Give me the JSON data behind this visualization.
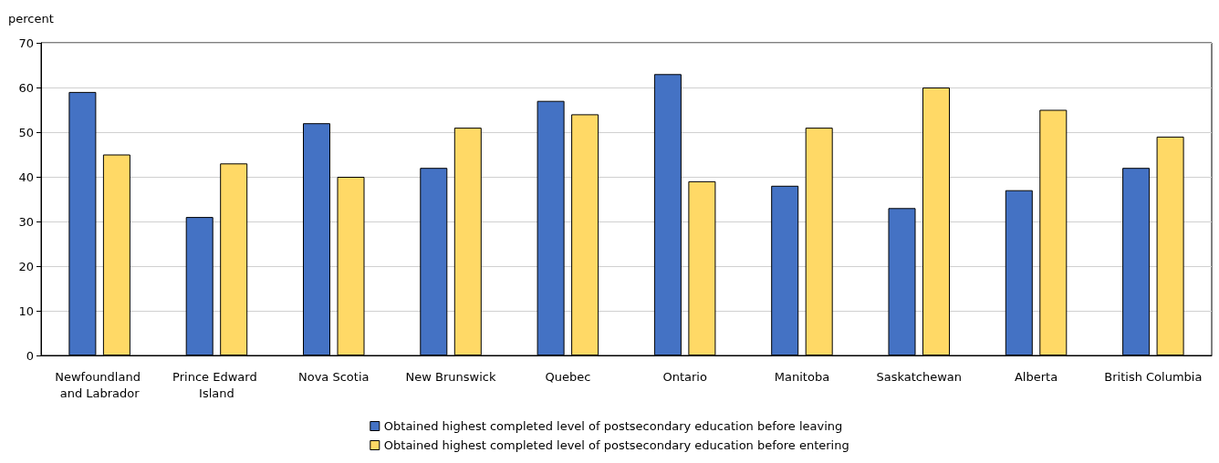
{
  "chart_data": {
    "type": "bar",
    "ylabel": "percent",
    "categories": [
      "Newfoundland and Labrador",
      "Prince Edward Island",
      "Nova Scotia",
      "New Brunswick",
      "Quebec",
      "Ontario",
      "Manitoba",
      "Saskatchewan",
      "Alberta",
      "British Columbia"
    ],
    "series": [
      {
        "name": "Obtained highest completed level of postsecondary education before leaving",
        "color": "#4472c4",
        "values": [
          59,
          31,
          52,
          42,
          57,
          63,
          38,
          33,
          37,
          42
        ]
      },
      {
        "name": "Obtained highest completed level of postsecondary education before entering",
        "color": "#ffd966",
        "values": [
          45,
          43,
          40,
          51,
          54,
          39,
          51,
          60,
          55,
          49
        ]
      }
    ],
    "ylim": [
      0,
      70
    ],
    "yticks": [
      0,
      10,
      20,
      30,
      40,
      50,
      60,
      70
    ],
    "grid": "y",
    "legend": "bottom"
  }
}
